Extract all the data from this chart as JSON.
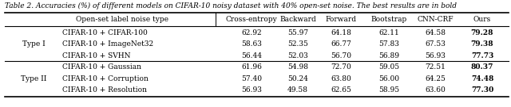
{
  "caption": "Table 2. Accuracies (%) of different models on CIFAR-10 noisy dataset with 40% open-set noise. The best results are in bold",
  "col_headers": [
    "Open-set label noise type",
    "Cross-entropy",
    "Backward",
    "Forward",
    "Bootstrap",
    "CNN-CRF",
    "Ours"
  ],
  "rows": [
    {
      "type_label": "Type I",
      "noise": "CIFAR-10 + CIFAR-100",
      "values": [
        "62.92",
        "55.97",
        "64.18",
        "62.11",
        "64.58",
        "79.28"
      ]
    },
    {
      "type_label": "",
      "noise": "CIFAR-10 + ImageNet32",
      "values": [
        "58.63",
        "52.35",
        "66.77",
        "57.83",
        "67.53",
        "79.38"
      ]
    },
    {
      "type_label": "",
      "noise": "CIFAR-10 + SVHN",
      "values": [
        "56.44",
        "52.03",
        "56.70",
        "56.89",
        "56.93",
        "77.73"
      ]
    },
    {
      "type_label": "Type II",
      "noise": "CIFAR-10 + Gaussian",
      "values": [
        "61.96",
        "54.98",
        "72.70",
        "59.05",
        "72.51",
        "80.37"
      ]
    },
    {
      "type_label": "",
      "noise": "CIFAR-10 + Corruption",
      "values": [
        "57.40",
        "50.24",
        "63.80",
        "56.00",
        "64.25",
        "74.48"
      ]
    },
    {
      "type_label": "",
      "noise": "CIFAR-10 + Resolution",
      "values": [
        "56.93",
        "49.58",
        "62.65",
        "58.95",
        "63.60",
        "77.30"
      ]
    }
  ],
  "figsize": [
    6.4,
    1.35
  ],
  "dpi": 100,
  "font_size": 6.5,
  "caption_font_size": 6.5
}
